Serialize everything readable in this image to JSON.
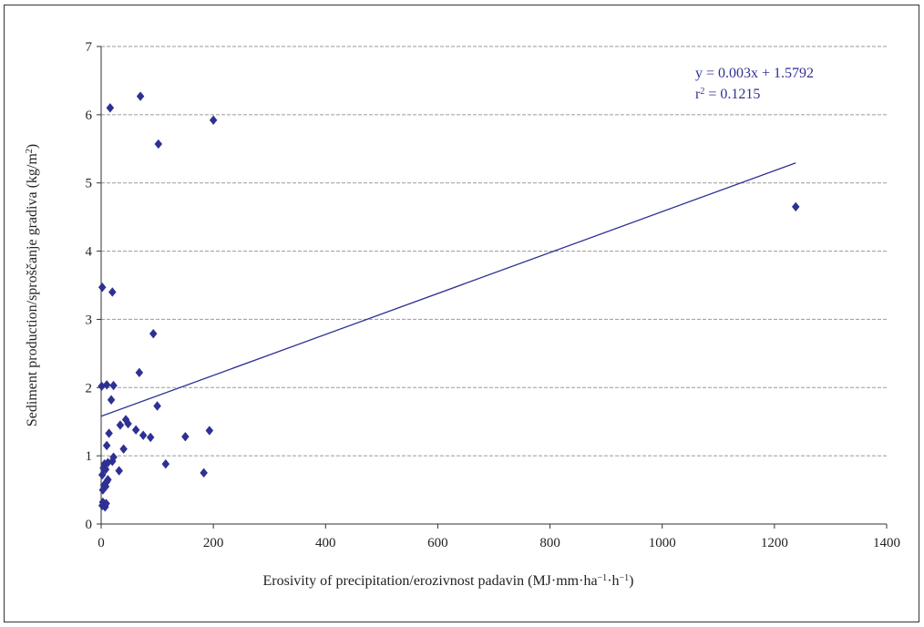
{
  "chart_data": {
    "type": "scatter",
    "title": "",
    "xlabel": {
      "parts": [
        {
          "text": "Erosivity of precipitation/erozivnost padavin (MJ·mm·ha"
        },
        {
          "text": "−1",
          "sup": true
        },
        {
          "text": "·h"
        },
        {
          "text": "−1",
          "sup": true
        },
        {
          "text": ")"
        }
      ]
    },
    "ylabel": {
      "parts": [
        {
          "text": "Sediment production/sproščanje gradiva (kg/m"
        },
        {
          "text": "2",
          "sup": true
        },
        {
          "text": ")"
        }
      ]
    },
    "xlim": [
      0,
      1400
    ],
    "ylim": [
      0,
      7
    ],
    "x_ticks": [
      "0",
      "200",
      "400",
      "600",
      "800",
      "1000",
      "1200",
      "1400"
    ],
    "y_ticks": [
      "0",
      "1",
      "2",
      "3",
      "4",
      "5",
      "6",
      "7"
    ],
    "grid": "horizontal dashed",
    "marker": "diamond",
    "colors": {
      "points": "#2e3192",
      "trendline": "#2e3192",
      "gridline": "#9a9a9a",
      "axis": "#333333"
    },
    "points": [
      [
        2,
        0.27
      ],
      [
        3,
        0.32
      ],
      [
        5,
        0.3
      ],
      [
        7,
        0.25
      ],
      [
        9,
        0.3
      ],
      [
        3,
        0.5
      ],
      [
        5,
        0.57
      ],
      [
        8,
        0.55
      ],
      [
        10,
        0.62
      ],
      [
        12,
        0.65
      ],
      [
        2,
        0.72
      ],
      [
        4,
        0.82
      ],
      [
        6,
        0.88
      ],
      [
        8,
        0.8
      ],
      [
        12,
        0.9
      ],
      [
        20,
        0.92
      ],
      [
        22,
        0.98
      ],
      [
        32,
        0.78
      ],
      [
        40,
        1.1
      ],
      [
        10,
        1.15
      ],
      [
        14,
        1.33
      ],
      [
        34,
        1.45
      ],
      [
        44,
        1.53
      ],
      [
        48,
        1.47
      ],
      [
        62,
        1.38
      ],
      [
        75,
        1.3
      ],
      [
        88,
        1.27
      ],
      [
        100,
        1.73
      ],
      [
        115,
        0.88
      ],
      [
        150,
        1.28
      ],
      [
        183,
        0.75
      ],
      [
        193,
        1.37
      ],
      [
        18,
        1.82
      ],
      [
        1,
        2.02
      ],
      [
        10,
        2.04
      ],
      [
        22,
        2.03
      ],
      [
        68,
        2.22
      ],
      [
        93,
        2.79
      ],
      [
        2,
        3.47
      ],
      [
        20,
        3.4
      ],
      [
        1238,
        4.65
      ],
      [
        102,
        5.57
      ],
      [
        16,
        6.1
      ],
      [
        70,
        6.27
      ],
      [
        200,
        5.92
      ]
    ],
    "trendline": {
      "slope": 0.003,
      "intercept": 1.5792,
      "x_range": [
        0,
        1238
      ],
      "equation": "y = 0.003x + 1.5792",
      "r2": {
        "base": "r",
        "sup": "2",
        "rest": " = 0.1215"
      }
    }
  }
}
